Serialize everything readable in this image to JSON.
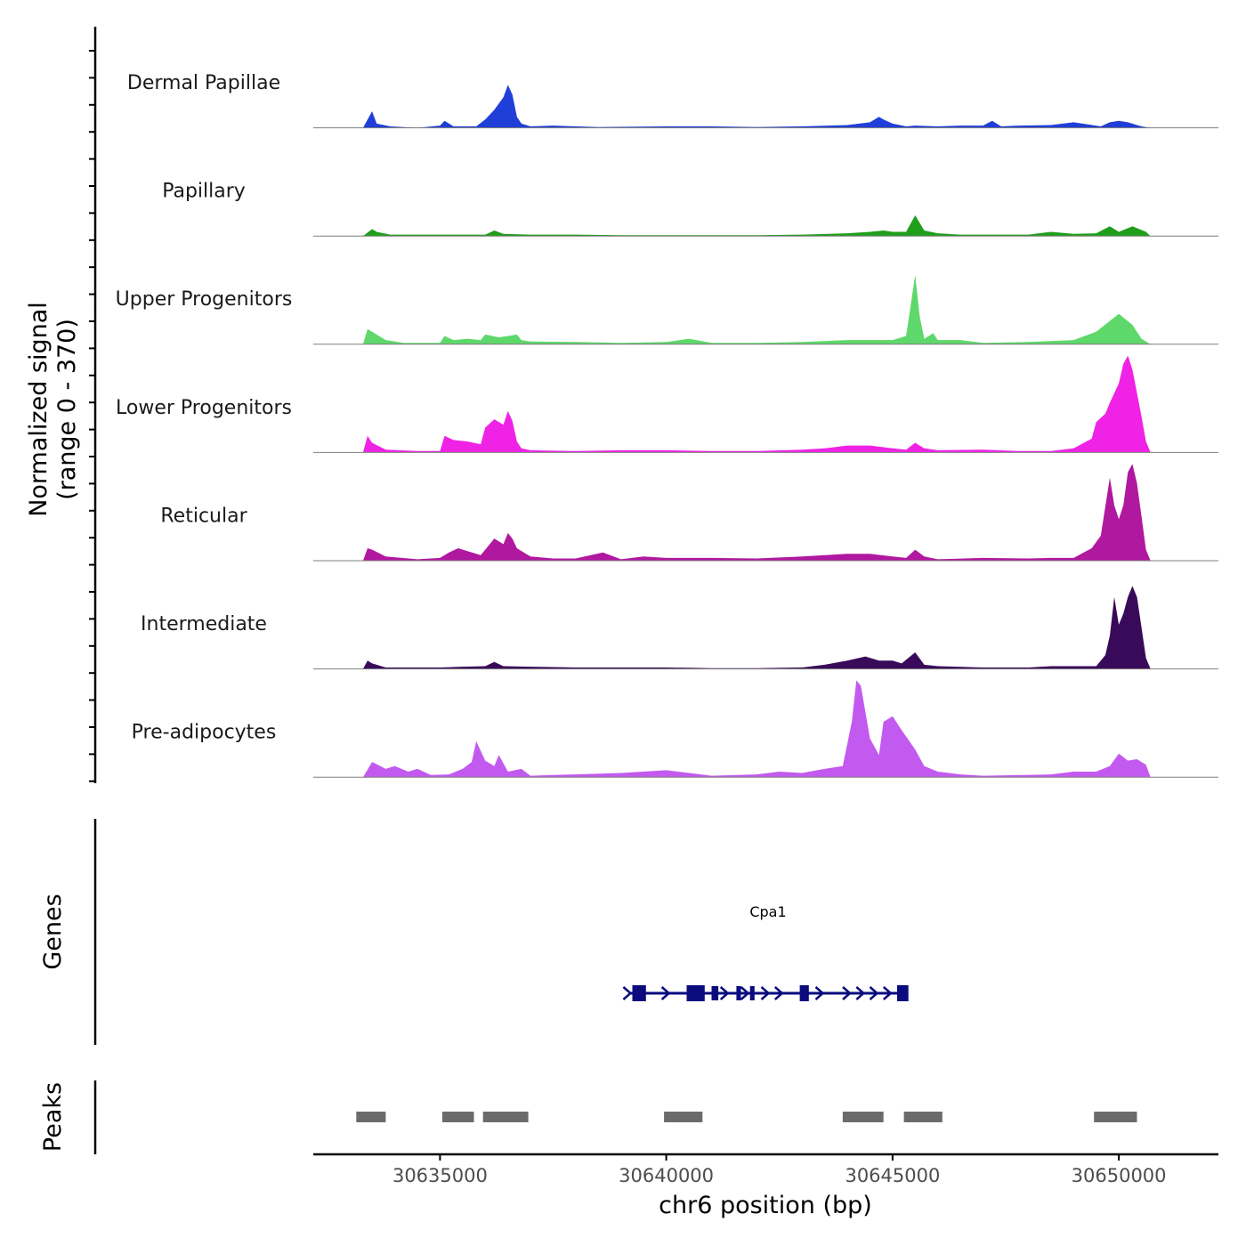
{
  "chart_data": {
    "type": "area",
    "title": "",
    "ylabel_line1": "Normalized signal",
    "ylabel_line2": "(range 0 - 370)",
    "ylim": [
      0,
      370
    ],
    "xlabel": "chr6 position (bp)",
    "xlim": [
      30632200,
      30652200
    ],
    "x_ticks": [
      {
        "value": 30635000,
        "label": "30635000"
      },
      {
        "value": 30640000,
        "label": "30640000"
      },
      {
        "value": 30645000,
        "label": "30645000"
      },
      {
        "value": 30650000,
        "label": "30650000"
      }
    ],
    "series": [
      {
        "name": "Dermal Papillae",
        "color": "#1f3fd8",
        "x": [
          30633300,
          30633500,
          30633600,
          30633900,
          30634500,
          30635000,
          30635100,
          30635300,
          30635800,
          30636000,
          30636200,
          30636400,
          30636500,
          30636600,
          30636700,
          30636800,
          30637000,
          30637500,
          30638000,
          30638500,
          30640000,
          30641000,
          30642000,
          30643000,
          30644000,
          30644500,
          30644700,
          30644800,
          30645000,
          30645300,
          30645500,
          30646000,
          30646500,
          30647000,
          30647200,
          30647400,
          30647800,
          30648500,
          30649000,
          30649600,
          30649800,
          30650000,
          30650200,
          30650500,
          30650700
        ],
        "values": [
          0,
          60,
          15,
          5,
          0,
          8,
          25,
          5,
          5,
          30,
          65,
          110,
          155,
          120,
          40,
          15,
          5,
          8,
          5,
          3,
          5,
          5,
          3,
          5,
          10,
          20,
          40,
          30,
          15,
          5,
          8,
          5,
          8,
          8,
          25,
          5,
          8,
          10,
          20,
          5,
          20,
          25,
          20,
          5,
          0
        ]
      },
      {
        "name": "Papillary",
        "color": "#1f9e1a",
        "x": [
          30633300,
          30633500,
          30633600,
          30633900,
          30635000,
          30636000,
          30636200,
          30636400,
          30637000,
          30638000,
          30639000,
          30640000,
          30641000,
          30642000,
          30643000,
          30644000,
          30644500,
          30644800,
          30645000,
          30645300,
          30645500,
          30645700,
          30646000,
          30646500,
          30647000,
          30648000,
          30648500,
          30649000,
          30649500,
          30649800,
          30650000,
          30650300,
          30650600,
          30650700
        ],
        "values": [
          0,
          25,
          15,
          5,
          5,
          5,
          20,
          8,
          5,
          5,
          3,
          3,
          3,
          3,
          5,
          10,
          15,
          20,
          15,
          15,
          75,
          20,
          10,
          5,
          5,
          5,
          15,
          8,
          10,
          35,
          15,
          35,
          15,
          0
        ]
      },
      {
        "name": "Upper Progenitors",
        "color": "#5ed86a",
        "x": [
          30633300,
          30633400,
          30633500,
          30633800,
          30634200,
          30635000,
          30635100,
          30635300,
          30635600,
          30635900,
          30636000,
          30636300,
          30636500,
          30636700,
          30636800,
          30637000,
          30638000,
          30639000,
          30640000,
          30640500,
          30641000,
          30642000,
          30643000,
          30644000,
          30645000,
          30645300,
          30645500,
          30645600,
          30645700,
          30645900,
          30646000,
          30646500,
          30647000,
          30648000,
          30649000,
          30649500,
          30650000,
          30650300,
          30650500,
          30650700
        ],
        "values": [
          0,
          55,
          45,
          15,
          5,
          5,
          30,
          15,
          20,
          15,
          35,
          25,
          30,
          35,
          15,
          10,
          8,
          5,
          8,
          20,
          5,
          5,
          8,
          15,
          15,
          30,
          250,
          100,
          20,
          40,
          15,
          15,
          5,
          8,
          15,
          45,
          110,
          70,
          20,
          0
        ]
      },
      {
        "name": "Lower Progenitors",
        "color": "#f022e6",
        "x": [
          30633300,
          30633400,
          30633500,
          30633800,
          30634500,
          30635000,
          30635100,
          30635300,
          30635600,
          30635900,
          30636000,
          30636200,
          30636400,
          30636500,
          30636600,
          30636700,
          30636800,
          30637000,
          30638000,
          30639000,
          30640000,
          30641000,
          30642000,
          30643000,
          30643500,
          30644000,
          30644500,
          30645000,
          30645300,
          30645500,
          30645700,
          30646000,
          30647000,
          30647800,
          30648500,
          30649000,
          30649400,
          30649500,
          30649700,
          30649800,
          30650000,
          30650100,
          30650200,
          30650300,
          30650500,
          30650600,
          30650700
        ],
        "values": [
          0,
          60,
          35,
          10,
          5,
          5,
          60,
          45,
          40,
          30,
          90,
          120,
          100,
          150,
          115,
          40,
          15,
          8,
          5,
          8,
          8,
          5,
          5,
          10,
          15,
          25,
          25,
          15,
          10,
          35,
          15,
          8,
          10,
          5,
          5,
          15,
          50,
          110,
          140,
          180,
          250,
          320,
          350,
          300,
          130,
          40,
          0
        ]
      },
      {
        "name": "Reticular",
        "color": "#b0189f",
        "x": [
          30633300,
          30633400,
          30633500,
          30633800,
          30634500,
          30635000,
          30635200,
          30635400,
          30635600,
          30635900,
          30636000,
          30636200,
          30636400,
          30636500,
          30636600,
          30636700,
          30636900,
          30637000,
          30637500,
          30638000,
          30638600,
          30639000,
          30639500,
          30640000,
          30641000,
          30642000,
          30643000,
          30644000,
          30644500,
          30645000,
          30645300,
          30645500,
          30645700,
          30646000,
          30647000,
          30648000,
          30648500,
          30649000,
          30649400,
          30649600,
          30649800,
          30649900,
          30650000,
          30650100,
          30650200,
          30650300,
          30650400,
          30650500,
          30650600,
          30650700
        ],
        "values": [
          0,
          45,
          40,
          15,
          5,
          10,
          30,
          45,
          35,
          20,
          40,
          80,
          60,
          100,
          80,
          45,
          25,
          15,
          8,
          8,
          30,
          5,
          15,
          10,
          10,
          8,
          15,
          25,
          25,
          15,
          10,
          40,
          15,
          5,
          10,
          8,
          10,
          10,
          45,
          90,
          300,
          200,
          150,
          200,
          320,
          350,
          280,
          160,
          40,
          0
        ]
      },
      {
        "name": "Intermediate",
        "color": "#3a0a5a",
        "x": [
          30633300,
          30633400,
          30633500,
          30633800,
          30635000,
          30635500,
          30636000,
          30636200,
          30636400,
          30637000,
          30638000,
          30639000,
          30640000,
          30641000,
          30642000,
          30643000,
          30643500,
          30644000,
          30644400,
          30644700,
          30645000,
          30645200,
          30645500,
          30645700,
          30646000,
          30647000,
          30648000,
          30648500,
          30649000,
          30649500,
          30649700,
          30649800,
          30649900,
          30650000,
          30650100,
          30650200,
          30650300,
          30650400,
          30650500,
          30650600,
          30650700
        ],
        "values": [
          0,
          30,
          20,
          5,
          5,
          8,
          10,
          25,
          10,
          8,
          5,
          5,
          5,
          3,
          3,
          5,
          15,
          30,
          45,
          30,
          30,
          20,
          60,
          15,
          10,
          5,
          5,
          10,
          10,
          10,
          50,
          120,
          260,
          160,
          200,
          260,
          300,
          260,
          150,
          40,
          0
        ]
      },
      {
        "name": "Pre-adipocytes",
        "color": "#c35af0",
        "x": [
          30633300,
          30633500,
          30633800,
          30634000,
          30634300,
          30634500,
          30634800,
          30635200,
          30635500,
          30635700,
          30635800,
          30636000,
          30636200,
          30636300,
          30636500,
          30636800,
          30637000,
          30637500,
          30638000,
          30639000,
          30640000,
          30640500,
          30641000,
          30642000,
          30642500,
          30643000,
          30643500,
          30643900,
          30644100,
          30644200,
          30644300,
          30644500,
          30644700,
          30644800,
          30645000,
          30645200,
          30645500,
          30645700,
          30646000,
          30646500,
          30647000,
          30648000,
          30648500,
          30649000,
          30649500,
          30649800,
          30650000,
          30650200,
          30650400,
          30650600,
          30650700
        ],
        "values": [
          0,
          55,
          30,
          40,
          20,
          30,
          8,
          10,
          30,
          55,
          130,
          60,
          40,
          80,
          20,
          30,
          5,
          8,
          10,
          15,
          25,
          15,
          5,
          10,
          20,
          15,
          30,
          40,
          200,
          350,
          330,
          140,
          80,
          200,
          220,
          170,
          100,
          40,
          20,
          10,
          5,
          8,
          10,
          20,
          20,
          40,
          85,
          60,
          65,
          45,
          0
        ]
      }
    ],
    "genes": [
      {
        "name": "Cpa1",
        "color": "#0b0b7e",
        "strand": "+",
        "start": 30639200,
        "end": 30645300,
        "exons": [
          [
            30639250,
            30639550
          ],
          [
            30640450,
            30640850
          ],
          [
            30641000,
            30641150
          ],
          [
            30641550,
            30641650
          ],
          [
            30641850,
            30641950
          ],
          [
            30642950,
            30643150
          ],
          [
            30645100,
            30645350
          ]
        ],
        "arrows": [
          30639150,
          30640000,
          30641300,
          30641750,
          30642200,
          30642500,
          30643400,
          30644000,
          30644300,
          30644600,
          30644900
        ]
      }
    ],
    "peaks": {
      "color": "#6b6b6b",
      "regions": [
        [
          30633150,
          30633800
        ],
        [
          30635050,
          30635750
        ],
        [
          30635950,
          30636950
        ],
        [
          30639950,
          30640800
        ],
        [
          30643900,
          30644800
        ],
        [
          30645250,
          30646100
        ],
        [
          30649450,
          30650400
        ]
      ]
    },
    "panel_labels": {
      "genes": "Genes",
      "peaks": "Peaks"
    }
  }
}
